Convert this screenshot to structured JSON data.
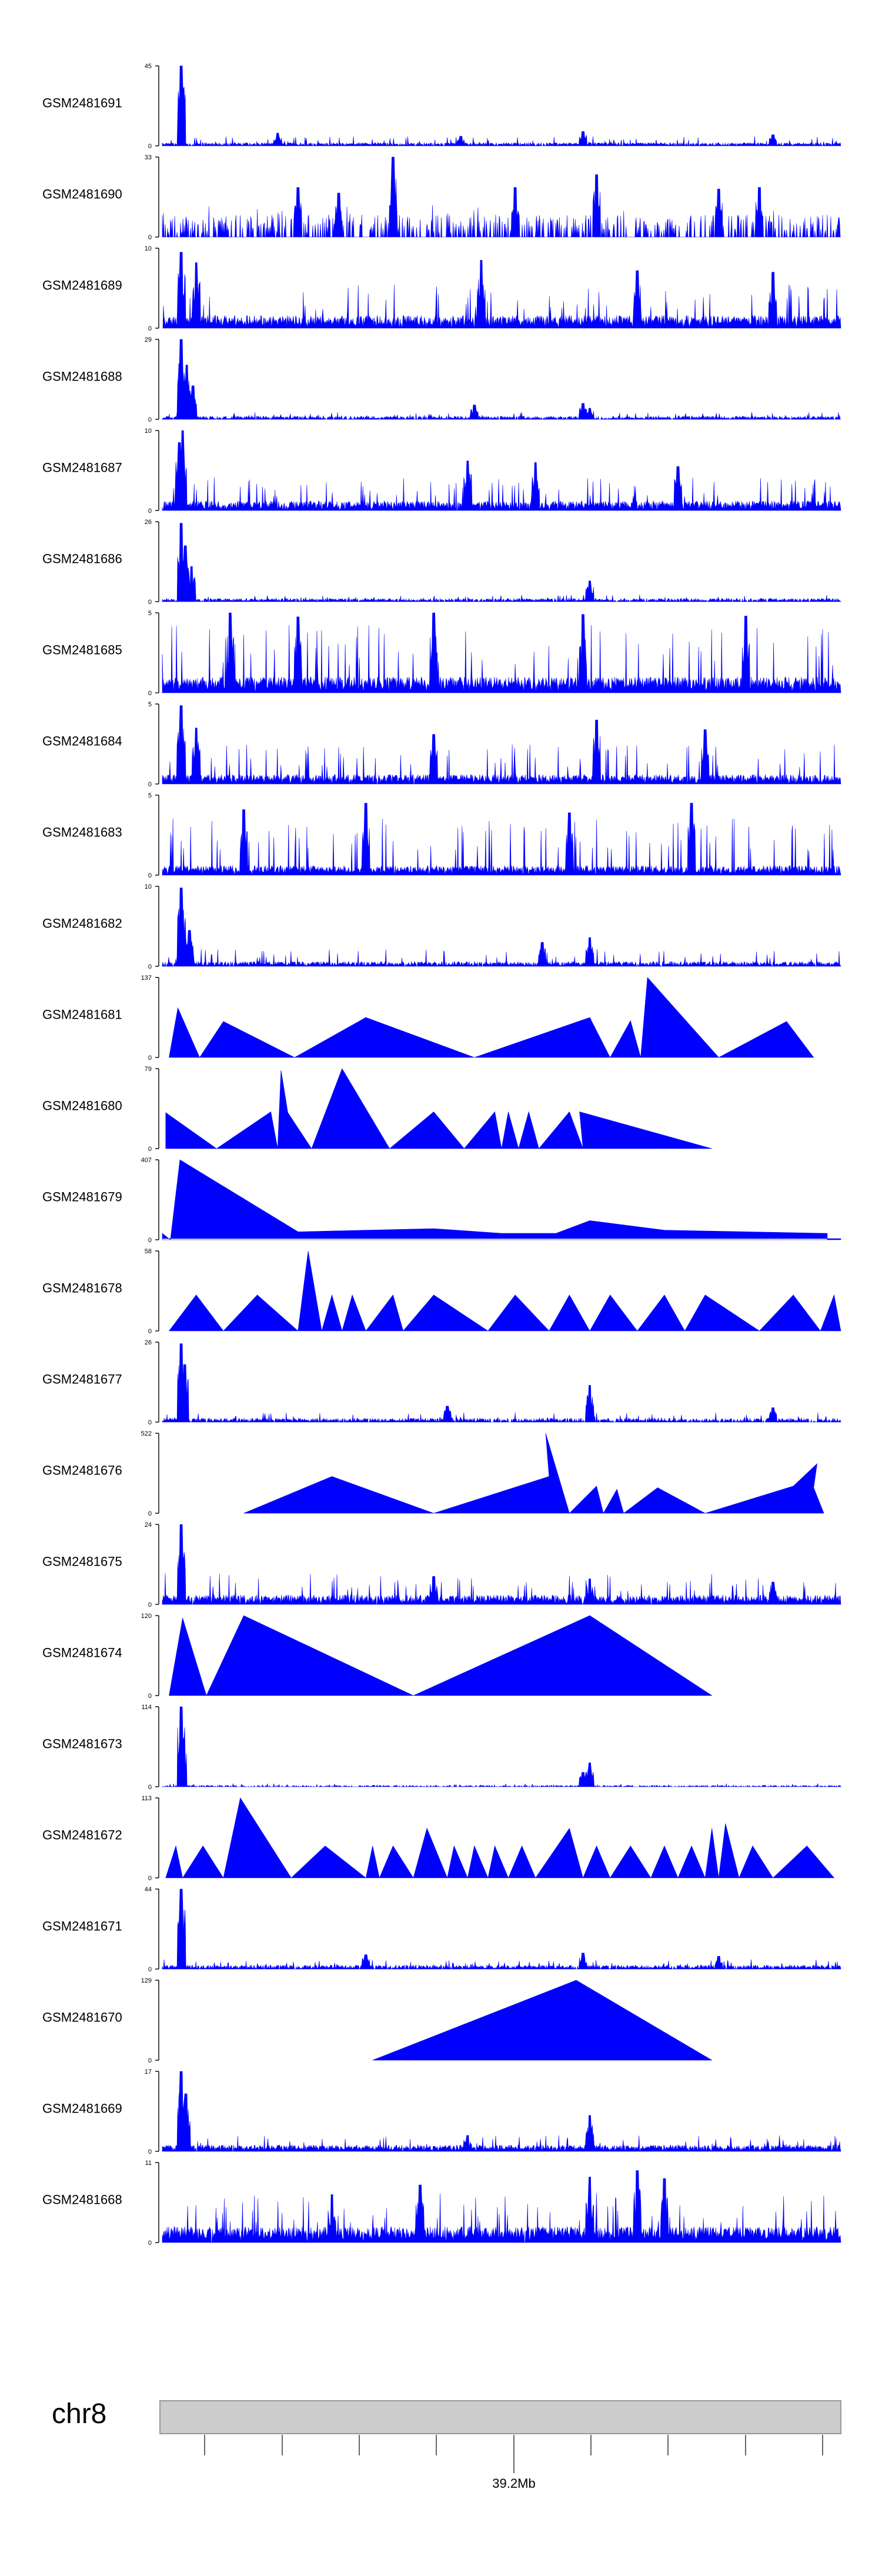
{
  "chart_data": {
    "type": "area",
    "title": "",
    "xlabel": "",
    "ylabel": "",
    "fill_color": "#0000FF",
    "tracks": [
      {
        "name": "GSM2481691",
        "ymax": 45,
        "style": "noise",
        "density": 0.9,
        "base": 0.04,
        "spike": 0.12,
        "peaks": [
          [
            0.028,
            1.0
          ],
          [
            0.17,
            0.16
          ],
          [
            0.44,
            0.12
          ],
          [
            0.62,
            0.18
          ],
          [
            0.9,
            0.14
          ]
        ]
      },
      {
        "name": "GSM2481690",
        "ymax": 33,
        "style": "sparse",
        "density": 0.35,
        "base": 0.28,
        "spike": 0.4,
        "peaks": [
          [
            0.2,
            0.62
          ],
          [
            0.26,
            0.55
          ],
          [
            0.34,
            1.0
          ],
          [
            0.52,
            0.62
          ],
          [
            0.64,
            0.78
          ],
          [
            0.82,
            0.6
          ],
          [
            0.88,
            0.62
          ]
        ]
      },
      {
        "name": "GSM2481689",
        "ymax": 10,
        "style": "noise",
        "density": 0.95,
        "base": 0.16,
        "spike": 0.55,
        "peaks": [
          [
            0.028,
            0.95
          ],
          [
            0.05,
            0.82
          ],
          [
            0.47,
            0.85
          ],
          [
            0.7,
            0.72
          ],
          [
            0.9,
            0.7
          ]
        ]
      },
      {
        "name": "GSM2481688",
        "ymax": 29,
        "style": "noise",
        "density": 0.8,
        "base": 0.04,
        "spike": 0.09,
        "peaks": [
          [
            0.028,
            1.0
          ],
          [
            0.036,
            0.68
          ],
          [
            0.045,
            0.42
          ],
          [
            0.46,
            0.18
          ],
          [
            0.62,
            0.2
          ],
          [
            0.63,
            0.14
          ]
        ]
      },
      {
        "name": "GSM2481687",
        "ymax": 10,
        "style": "noise",
        "density": 0.95,
        "base": 0.12,
        "spike": 0.42,
        "peaks": [
          [
            0.025,
            0.85
          ],
          [
            0.03,
            1.0
          ],
          [
            0.45,
            0.62
          ],
          [
            0.55,
            0.6
          ],
          [
            0.76,
            0.55
          ]
        ]
      },
      {
        "name": "GSM2481686",
        "ymax": 26,
        "style": "noise",
        "density": 0.85,
        "base": 0.04,
        "spike": 0.09,
        "peaks": [
          [
            0.028,
            0.98
          ],
          [
            0.034,
            0.7
          ],
          [
            0.043,
            0.44
          ],
          [
            0.63,
            0.26
          ]
        ]
      },
      {
        "name": "GSM2481685",
        "ymax": 5,
        "style": "noise",
        "density": 0.98,
        "base": 0.2,
        "spike": 0.85,
        "peaks": [
          [
            0.1,
            1.0
          ],
          [
            0.2,
            0.95
          ],
          [
            0.4,
            1.0
          ],
          [
            0.62,
            0.98
          ],
          [
            0.86,
            0.96
          ]
        ]
      },
      {
        "name": "GSM2481684",
        "ymax": 5,
        "style": "noise",
        "density": 0.95,
        "base": 0.12,
        "spike": 0.5,
        "peaks": [
          [
            0.028,
            0.98
          ],
          [
            0.05,
            0.7
          ],
          [
            0.4,
            0.62
          ],
          [
            0.64,
            0.8
          ],
          [
            0.8,
            0.68
          ]
        ]
      },
      {
        "name": "GSM2481683",
        "ymax": 5,
        "style": "noise",
        "density": 0.97,
        "base": 0.12,
        "spike": 0.72,
        "peaks": [
          [
            0.12,
            0.82
          ],
          [
            0.3,
            0.9
          ],
          [
            0.6,
            0.78
          ],
          [
            0.78,
            0.9
          ]
        ]
      },
      {
        "name": "GSM2481682",
        "ymax": 10,
        "style": "noise",
        "density": 0.9,
        "base": 0.06,
        "spike": 0.22,
        "peaks": [
          [
            0.028,
            0.98
          ],
          [
            0.03,
            0.7
          ],
          [
            0.04,
            0.45
          ],
          [
            0.56,
            0.3
          ],
          [
            0.63,
            0.36
          ]
        ]
      },
      {
        "name": "GSM2481681",
        "ymax": 137,
        "style": "tri",
        "points": [
          [
            0.01,
            0
          ],
          [
            0.023,
            0.62
          ],
          [
            0.055,
            0
          ],
          [
            0.09,
            0.45
          ],
          [
            0.195,
            0
          ],
          [
            0.3,
            0.5
          ],
          [
            0.46,
            0
          ],
          [
            0.63,
            0.5
          ],
          [
            0.66,
            0
          ],
          [
            0.69,
            0.46
          ],
          [
            0.705,
            0
          ],
          [
            0.715,
            1.0
          ],
          [
            0.82,
            0
          ],
          [
            0.92,
            0.45
          ],
          [
            0.96,
            0
          ]
        ]
      },
      {
        "name": "GSM2481680",
        "ymax": 79,
        "style": "tri",
        "points": [
          [
            0.005,
            0
          ],
          [
            0.005,
            0.45
          ],
          [
            0.08,
            0
          ],
          [
            0.16,
            0.46
          ],
          [
            0.17,
            0
          ],
          [
            0.175,
            0.98
          ],
          [
            0.185,
            0.45
          ],
          [
            0.22,
            0
          ],
          [
            0.265,
            1.0
          ],
          [
            0.335,
            0
          ],
          [
            0.4,
            0.46
          ],
          [
            0.445,
            0
          ],
          [
            0.49,
            0.46
          ],
          [
            0.5,
            0
          ],
          [
            0.51,
            0.46
          ],
          [
            0.525,
            0
          ],
          [
            0.54,
            0.46
          ],
          [
            0.555,
            0
          ],
          [
            0.6,
            0.46
          ],
          [
            0.62,
            0
          ],
          [
            0.615,
            0.46
          ],
          [
            0.81,
            0
          ]
        ]
      },
      {
        "name": "GSM2481679",
        "ymax": 407,
        "style": "spikes",
        "points": [
          [
            0.0,
            0.08
          ],
          [
            0.012,
            0.0
          ],
          [
            0.026,
            1.0
          ],
          [
            0.2,
            0.1
          ],
          [
            0.3,
            0.12
          ],
          [
            0.4,
            0.14
          ],
          [
            0.5,
            0.08
          ],
          [
            0.58,
            0.08
          ],
          [
            0.63,
            0.24
          ],
          [
            0.74,
            0.12
          ],
          [
            0.98,
            0.08
          ]
        ]
      },
      {
        "name": "GSM2481678",
        "ymax": 58,
        "style": "tri",
        "points": [
          [
            0.01,
            0
          ],
          [
            0.05,
            0.45
          ],
          [
            0.09,
            0
          ],
          [
            0.14,
            0.45
          ],
          [
            0.2,
            0
          ],
          [
            0.215,
            1.0
          ],
          [
            0.235,
            0
          ],
          [
            0.25,
            0.45
          ],
          [
            0.265,
            0
          ],
          [
            0.28,
            0.45
          ],
          [
            0.3,
            0
          ],
          [
            0.34,
            0.45
          ],
          [
            0.355,
            0
          ],
          [
            0.4,
            0.45
          ],
          [
            0.48,
            0
          ],
          [
            0.52,
            0.45
          ],
          [
            0.57,
            0
          ],
          [
            0.6,
            0.45
          ],
          [
            0.63,
            0
          ],
          [
            0.66,
            0.45
          ],
          [
            0.7,
            0
          ],
          [
            0.74,
            0.45
          ],
          [
            0.77,
            0
          ],
          [
            0.8,
            0.45
          ],
          [
            0.88,
            0
          ],
          [
            0.93,
            0.45
          ],
          [
            0.97,
            0
          ],
          [
            0.99,
            0.45
          ],
          [
            1.0,
            0
          ]
        ]
      },
      {
        "name": "GSM2481677",
        "ymax": 26,
        "style": "noise",
        "density": 0.8,
        "base": 0.05,
        "spike": 0.12,
        "peaks": [
          [
            0.028,
            0.98
          ],
          [
            0.033,
            0.72
          ],
          [
            0.63,
            0.46
          ],
          [
            0.42,
            0.2
          ],
          [
            0.9,
            0.18
          ]
        ]
      },
      {
        "name": "GSM2481676",
        "ymax": 522,
        "style": "tri",
        "points": [
          [
            0.12,
            0
          ],
          [
            0.25,
            0.46
          ],
          [
            0.4,
            0
          ],
          [
            0.57,
            0.46
          ],
          [
            0.565,
            1.0
          ],
          [
            0.6,
            0
          ],
          [
            0.64,
            0.34
          ],
          [
            0.65,
            0
          ],
          [
            0.67,
            0.3
          ],
          [
            0.68,
            0
          ],
          [
            0.73,
            0.32
          ],
          [
            0.8,
            0
          ],
          [
            0.93,
            0.34
          ],
          [
            0.965,
            0.62
          ],
          [
            0.96,
            0.32
          ],
          [
            0.975,
            0
          ]
        ]
      },
      {
        "name": "GSM2481675",
        "ymax": 24,
        "style": "noise",
        "density": 0.95,
        "base": 0.12,
        "spike": 0.4,
        "peaks": [
          [
            0.028,
            1.0
          ],
          [
            0.4,
            0.35
          ],
          [
            0.63,
            0.32
          ],
          [
            0.9,
            0.28
          ]
        ]
      },
      {
        "name": "GSM2481674",
        "ymax": 120,
        "style": "tri",
        "points": [
          [
            0.01,
            0
          ],
          [
            0.03,
            0.97
          ],
          [
            0.065,
            0
          ],
          [
            0.12,
            1.0
          ],
          [
            0.37,
            0
          ],
          [
            0.63,
            1.0
          ],
          [
            0.81,
            0
          ]
        ]
      },
      {
        "name": "GSM2481673",
        "ymax": 114,
        "style": "noise",
        "density": 0.5,
        "base": 0.02,
        "spike": 0.04,
        "peaks": [
          [
            0.028,
            1.0
          ],
          [
            0.03,
            0.6
          ],
          [
            0.63,
            0.3
          ],
          [
            0.62,
            0.18
          ]
        ]
      },
      {
        "name": "GSM2481672",
        "ymax": 113,
        "style": "tri",
        "points": [
          [
            0.005,
            0
          ],
          [
            0.02,
            0.4
          ],
          [
            0.03,
            0
          ],
          [
            0.06,
            0.4
          ],
          [
            0.09,
            0
          ],
          [
            0.115,
            1.0
          ],
          [
            0.19,
            0
          ],
          [
            0.24,
            0.4
          ],
          [
            0.3,
            0
          ],
          [
            0.31,
            0.4
          ],
          [
            0.32,
            0
          ],
          [
            0.34,
            0.4
          ],
          [
            0.37,
            0
          ],
          [
            0.39,
            0.62
          ],
          [
            0.42,
            0
          ],
          [
            0.43,
            0.4
          ],
          [
            0.45,
            0
          ],
          [
            0.46,
            0.4
          ],
          [
            0.48,
            0
          ],
          [
            0.49,
            0.4
          ],
          [
            0.51,
            0
          ],
          [
            0.53,
            0.4
          ],
          [
            0.55,
            0
          ],
          [
            0.6,
            0.62
          ],
          [
            0.62,
            0
          ],
          [
            0.64,
            0.4
          ],
          [
            0.66,
            0
          ],
          [
            0.69,
            0.4
          ],
          [
            0.72,
            0
          ],
          [
            0.74,
            0.4
          ],
          [
            0.76,
            0
          ],
          [
            0.78,
            0.4
          ],
          [
            0.8,
            0
          ],
          [
            0.81,
            0.62
          ],
          [
            0.82,
            0
          ],
          [
            0.83,
            0.68
          ],
          [
            0.85,
            0
          ],
          [
            0.87,
            0.4
          ],
          [
            0.9,
            0
          ],
          [
            0.95,
            0.4
          ],
          [
            0.99,
            0
          ]
        ]
      },
      {
        "name": "GSM2481671",
        "ymax": 44,
        "style": "noise",
        "density": 0.85,
        "base": 0.05,
        "spike": 0.12,
        "peaks": [
          [
            0.028,
            1.0
          ],
          [
            0.3,
            0.18
          ],
          [
            0.62,
            0.2
          ],
          [
            0.82,
            0.16
          ]
        ]
      },
      {
        "name": "GSM2481670",
        "ymax": 129,
        "style": "tri",
        "points": [
          [
            0.31,
            0
          ],
          [
            0.61,
            1.0
          ],
          [
            0.81,
            0
          ]
        ]
      },
      {
        "name": "GSM2481669",
        "ymax": 17,
        "style": "noise",
        "density": 0.92,
        "base": 0.08,
        "spike": 0.2,
        "peaks": [
          [
            0.028,
            1.0
          ],
          [
            0.035,
            0.72
          ],
          [
            0.63,
            0.45
          ],
          [
            0.45,
            0.2
          ]
        ]
      },
      {
        "name": "GSM2481668",
        "ymax": 11,
        "style": "noise",
        "density": 0.98,
        "base": 0.2,
        "spike": 0.62,
        "peaks": [
          [
            0.25,
            0.6
          ],
          [
            0.38,
            0.72
          ],
          [
            0.63,
            0.82
          ],
          [
            0.7,
            0.9
          ],
          [
            0.74,
            0.8
          ]
        ]
      }
    ],
    "chromosome": "chr8",
    "position_label": "39.2Mb"
  }
}
